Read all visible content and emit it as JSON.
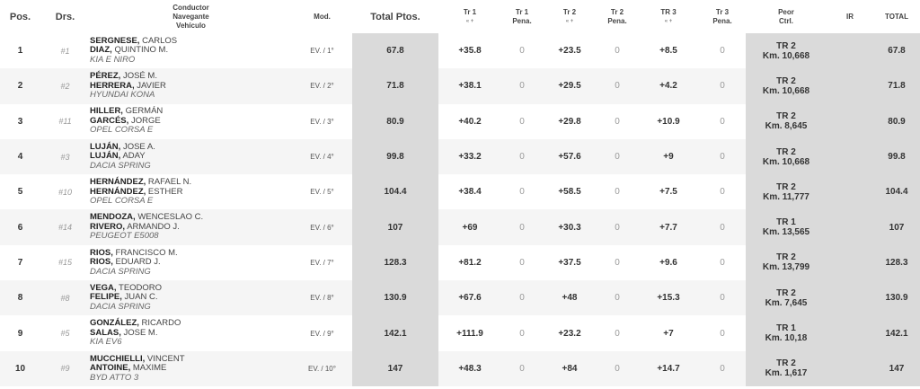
{
  "headers": {
    "pos": "Pos.",
    "drs": "Drs.",
    "crew": [
      "Conductor",
      "Navegante",
      "Vehículo"
    ],
    "mod": "Mod.",
    "total_ptos": "Total Ptos.",
    "tr1": [
      "Tr 1",
      "« +"
    ],
    "tr1p": [
      "Tr 1",
      "Pena."
    ],
    "tr2": [
      "Tr 2",
      "« +"
    ],
    "tr2p": [
      "Tr 2",
      "Pena."
    ],
    "tr3": [
      "TR 3",
      "« +"
    ],
    "tr3p": [
      "Tr 3",
      "Pena."
    ],
    "peor": [
      "Peor",
      "Ctrl."
    ],
    "ir": "IR",
    "total": "TOTAL"
  },
  "rows": [
    {
      "pos": "1",
      "drs": "#1",
      "d_last": "SERGNESE,",
      "d_first": "CARLOS",
      "n_last": "DIAZ,",
      "n_first": "QUINTINO M.",
      "car": "KIA E NIRO",
      "mod": "EV. / 1°",
      "tp": "67.8",
      "tr1": "+35.8",
      "p1": "0",
      "tr2": "+23.5",
      "p2": "0",
      "tr3": "+8.5",
      "p3": "0",
      "peor_tr": "TR 2",
      "peor_km": "Km. 10,668",
      "ir": "",
      "total": "67.8"
    },
    {
      "pos": "2",
      "drs": "#2",
      "d_last": "PÉREZ,",
      "d_first": "JOSÉ M.",
      "n_last": "HERRERA,",
      "n_first": "JAVIER",
      "car": "HYUNDAI KONA",
      "mod": "EV. / 2°",
      "tp": "71.8",
      "tr1": "+38.1",
      "p1": "0",
      "tr2": "+29.5",
      "p2": "0",
      "tr3": "+4.2",
      "p3": "0",
      "peor_tr": "TR 2",
      "peor_km": "Km. 10,668",
      "ir": "",
      "total": "71.8"
    },
    {
      "pos": "3",
      "drs": "#11",
      "d_last": "HILLER,",
      "d_first": "GERMÁN",
      "n_last": "GARCÉS,",
      "n_first": "JORGE",
      "car": "OPEL CORSA E",
      "mod": "EV. / 3°",
      "tp": "80.9",
      "tr1": "+40.2",
      "p1": "0",
      "tr2": "+29.8",
      "p2": "0",
      "tr3": "+10.9",
      "p3": "0",
      "peor_tr": "TR 2",
      "peor_km": "Km. 8,645",
      "ir": "",
      "total": "80.9"
    },
    {
      "pos": "4",
      "drs": "#3",
      "d_last": "LUJÁN,",
      "d_first": "JOSE A.",
      "n_last": "LUJÁN,",
      "n_first": "ADAY",
      "car": "DACIA SPRING",
      "mod": "EV. / 4°",
      "tp": "99.8",
      "tr1": "+33.2",
      "p1": "0",
      "tr2": "+57.6",
      "p2": "0",
      "tr3": "+9",
      "p3": "0",
      "peor_tr": "TR 2",
      "peor_km": "Km. 10,668",
      "ir": "",
      "total": "99.8"
    },
    {
      "pos": "5",
      "drs": "#10",
      "d_last": "HERNÁNDEZ,",
      "d_first": "RAFAEL N.",
      "n_last": "HERNÁNDEZ,",
      "n_first": "ESTHER",
      "car": "OPEL CORSA E",
      "mod": "EV. / 5°",
      "tp": "104.4",
      "tr1": "+38.4",
      "p1": "0",
      "tr2": "+58.5",
      "p2": "0",
      "tr3": "+7.5",
      "p3": "0",
      "peor_tr": "TR 2",
      "peor_km": "Km. 11,777",
      "ir": "",
      "total": "104.4"
    },
    {
      "pos": "6",
      "drs": "#14",
      "d_last": "MENDOZA,",
      "d_first": "WENCESLAO C.",
      "n_last": "RIVERO,",
      "n_first": "ARMANDO J.",
      "car": "PEUGEOT E5008",
      "mod": "EV. / 6°",
      "tp": "107",
      "tr1": "+69",
      "p1": "0",
      "tr2": "+30.3",
      "p2": "0",
      "tr3": "+7.7",
      "p3": "0",
      "peor_tr": "TR 1",
      "peor_km": "Km. 13,565",
      "ir": "",
      "total": "107"
    },
    {
      "pos": "7",
      "drs": "#15",
      "d_last": "RIOS,",
      "d_first": "FRANCISCO M.",
      "n_last": "RIOS,",
      "n_first": "EDUARD J.",
      "car": "DACIA SPRING",
      "mod": "EV. / 7°",
      "tp": "128.3",
      "tr1": "+81.2",
      "p1": "0",
      "tr2": "+37.5",
      "p2": "0",
      "tr3": "+9.6",
      "p3": "0",
      "peor_tr": "TR 2",
      "peor_km": "Km. 13,799",
      "ir": "",
      "total": "128.3"
    },
    {
      "pos": "8",
      "drs": "#8",
      "d_last": "VEGA,",
      "d_first": "TEODORO",
      "n_last": "FELIPE,",
      "n_first": "JUAN C.",
      "car": "DACIA SPRING",
      "mod": "EV. / 8°",
      "tp": "130.9",
      "tr1": "+67.6",
      "p1": "0",
      "tr2": "+48",
      "p2": "0",
      "tr3": "+15.3",
      "p3": "0",
      "peor_tr": "TR 2",
      "peor_km": "Km. 7,645",
      "ir": "",
      "total": "130.9"
    },
    {
      "pos": "9",
      "drs": "#5",
      "d_last": "GONZÁLEZ,",
      "d_first": "RICARDO",
      "n_last": "SALAS,",
      "n_first": "JOSE M.",
      "car": "KIA EV6",
      "mod": "EV. / 9°",
      "tp": "142.1",
      "tr1": "+111.9",
      "p1": "0",
      "tr2": "+23.2",
      "p2": "0",
      "tr3": "+7",
      "p3": "0",
      "peor_tr": "TR 1",
      "peor_km": "Km. 10,18",
      "ir": "",
      "total": "142.1"
    },
    {
      "pos": "10",
      "drs": "#9",
      "d_last": "MUCCHIELLI,",
      "d_first": "VINCENT",
      "n_last": "ANTOINE,",
      "n_first": "MAXIME",
      "car": "BYD ATTO 3",
      "mod": "EV. / 10°",
      "tp": "147",
      "tr1": "+48.3",
      "p1": "0",
      "tr2": "+84",
      "p2": "0",
      "tr3": "+14.7",
      "p3": "0",
      "peor_tr": "TR 2",
      "peor_km": "Km. 1,617",
      "ir": "",
      "total": "147"
    }
  ]
}
